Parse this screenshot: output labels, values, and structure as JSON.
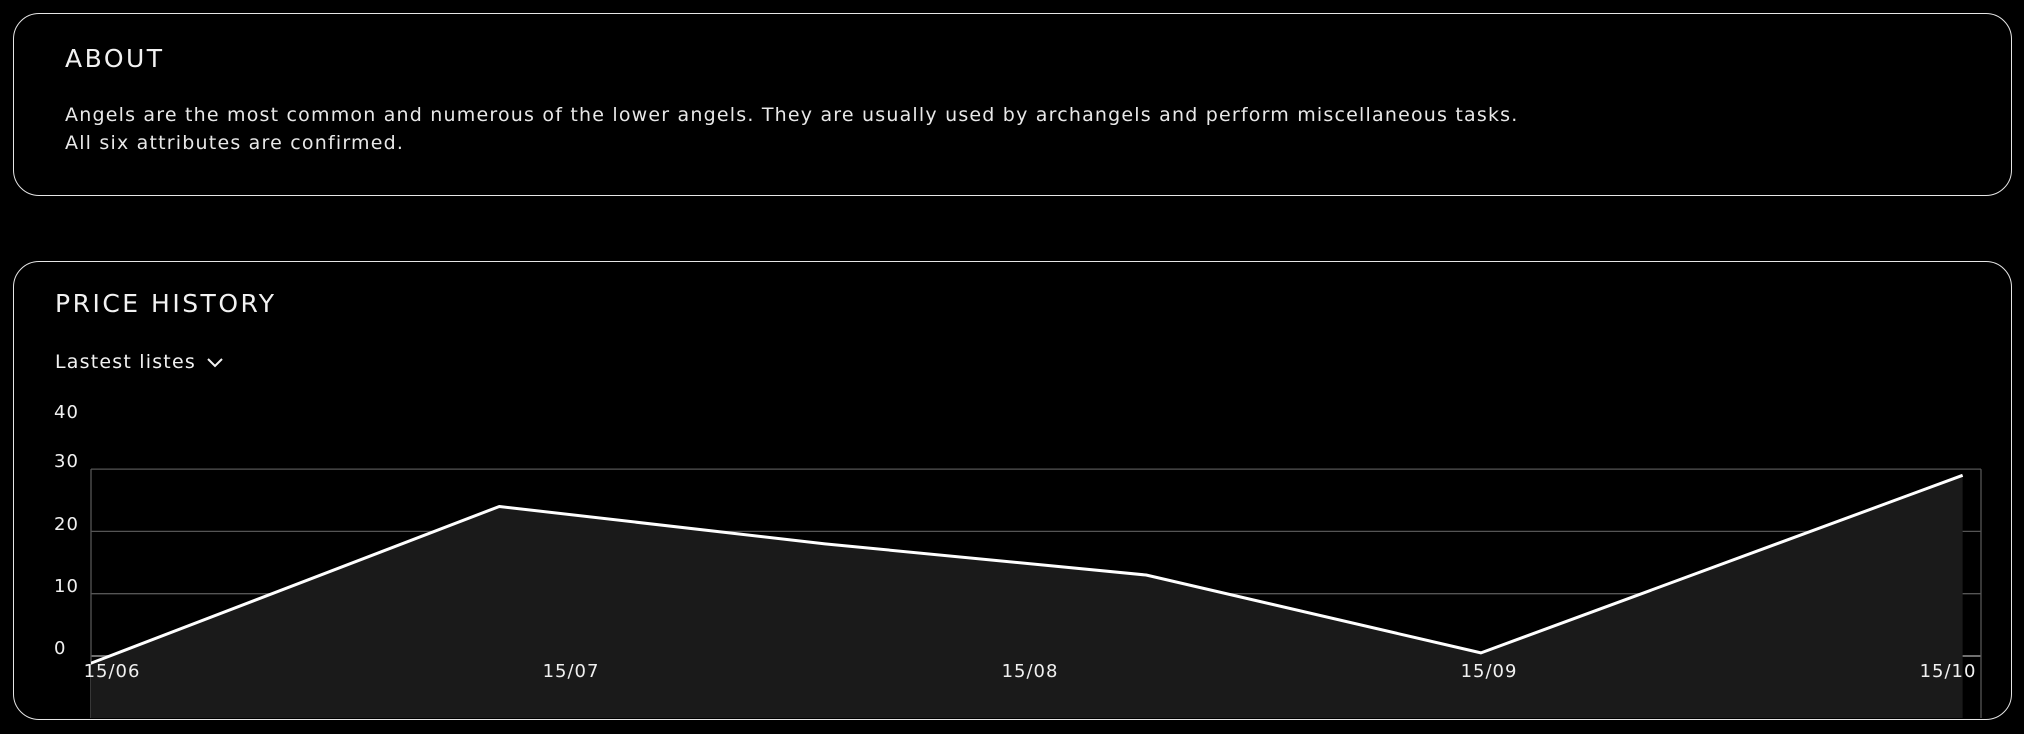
{
  "about": {
    "title": "ABOUT",
    "line1": "Angels are the most common and numerous of the lower angels. They are usually used by archangels and perform miscellaneous tasks.",
    "line2": "All six attributes are confirmed."
  },
  "price_history": {
    "title": "PRICE HISTORY",
    "dropdown_label": "Lastest listes",
    "dropdown_icon": "chevron-down-icon"
  },
  "colors": {
    "background": "#000000",
    "border": "#e6e6e6",
    "line": "#ffffff",
    "area": "#1a1a1a",
    "grid": "#555555"
  },
  "chart_data": {
    "type": "area",
    "title": "PRICE HISTORY",
    "x_labels": [
      "15/06",
      "15/07",
      "15/08",
      "15/09",
      "15/10"
    ],
    "x": [
      -0.03,
      0.89,
      1.6,
      2.3,
      3.03,
      4.08
    ],
    "values": [
      -2,
      24,
      18,
      13,
      0.5,
      29
    ],
    "y_ticks": [
      0,
      10,
      20,
      30,
      40
    ],
    "ylim": [
      -10,
      30
    ],
    "xlim": [
      0,
      4.12
    ],
    "grid": true
  }
}
